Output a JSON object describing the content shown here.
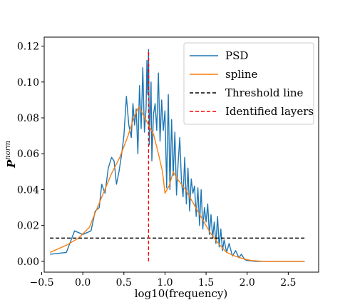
{
  "chart_data": {
    "type": "line",
    "xlabel": "log10(frequency)",
    "ylabel_base": "P",
    "ylabel_sup": "norm",
    "xlim": [
      -0.47,
      2.87
    ],
    "ylim": [
      -0.006,
      0.125
    ],
    "xticks": [
      -0.5,
      0.0,
      0.5,
      1.0,
      1.5,
      2.0,
      2.5
    ],
    "xtick_labels": [
      "−0.5",
      "0.0",
      "0.5",
      "1.0",
      "1.5",
      "2.0",
      "2.5"
    ],
    "yticks": [
      0.0,
      0.02,
      0.04,
      0.06,
      0.08,
      0.1,
      0.12
    ],
    "ytick_labels": [
      "0.00",
      "0.02",
      "0.04",
      "0.06",
      "0.08",
      "0.10",
      "0.12"
    ],
    "grid": false,
    "legend_position": "top-right",
    "threshold": 0.013,
    "identified_layer_x": 0.8,
    "series": [
      {
        "name": "PSD",
        "color": "#1f77b4",
        "style": "solid",
        "points": [
          [
            -0.4,
            0.004
          ],
          [
            -0.2,
            0.005
          ],
          [
            -0.1,
            0.017
          ],
          [
            0.0,
            0.015
          ],
          [
            0.1,
            0.017
          ],
          [
            0.15,
            0.028
          ],
          [
            0.2,
            0.03
          ],
          [
            0.23,
            0.043
          ],
          [
            0.27,
            0.038
          ],
          [
            0.31,
            0.052
          ],
          [
            0.35,
            0.058
          ],
          [
            0.38,
            0.056
          ],
          [
            0.41,
            0.043
          ],
          [
            0.44,
            0.05
          ],
          [
            0.47,
            0.059
          ],
          [
            0.5,
            0.07
          ],
          [
            0.53,
            0.092
          ],
          [
            0.56,
            0.076
          ],
          [
            0.59,
            0.069
          ],
          [
            0.61,
            0.088
          ],
          [
            0.63,
            0.076
          ],
          [
            0.65,
            0.085
          ],
          [
            0.67,
            0.06
          ],
          [
            0.69,
            0.098
          ],
          [
            0.71,
            0.074
          ],
          [
            0.73,
            0.108
          ],
          [
            0.75,
            0.072
          ],
          [
            0.77,
            0.085
          ],
          [
            0.78,
            0.112
          ],
          [
            0.79,
            0.093
          ],
          [
            0.8,
            0.118
          ],
          [
            0.81,
            0.065
          ],
          [
            0.83,
            0.1
          ],
          [
            0.84,
            0.056
          ],
          [
            0.86,
            0.082
          ],
          [
            0.88,
            0.088
          ],
          [
            0.9,
            0.073
          ],
          [
            0.92,
            0.105
          ],
          [
            0.94,
            0.067
          ],
          [
            0.96,
            0.09
          ],
          [
            0.98,
            0.073
          ],
          [
            1.0,
            0.084
          ],
          [
            1.02,
            0.041
          ],
          [
            1.04,
            0.093
          ],
          [
            1.06,
            0.04
          ],
          [
            1.08,
            0.079
          ],
          [
            1.1,
            0.048
          ],
          [
            1.12,
            0.072
          ],
          [
            1.14,
            0.037
          ],
          [
            1.16,
            0.055
          ],
          [
            1.18,
            0.069
          ],
          [
            1.2,
            0.045
          ],
          [
            1.22,
            0.036
          ],
          [
            1.24,
            0.058
          ],
          [
            1.26,
            0.032
          ],
          [
            1.28,
            0.052
          ],
          [
            1.3,
            0.028
          ],
          [
            1.32,
            0.046
          ],
          [
            1.34,
            0.038
          ],
          [
            1.36,
            0.042
          ],
          [
            1.38,
            0.025
          ],
          [
            1.4,
            0.041
          ],
          [
            1.42,
            0.02
          ],
          [
            1.44,
            0.04
          ],
          [
            1.46,
            0.018
          ],
          [
            1.48,
            0.03
          ],
          [
            1.5,
            0.022
          ],
          [
            1.52,
            0.032
          ],
          [
            1.54,
            0.015
          ],
          [
            1.56,
            0.026
          ],
          [
            1.58,
            0.013
          ],
          [
            1.6,
            0.022
          ],
          [
            1.62,
            0.01
          ],
          [
            1.64,
            0.025
          ],
          [
            1.66,
            0.008
          ],
          [
            1.68,
            0.018
          ],
          [
            1.7,
            0.006
          ],
          [
            1.72,
            0.012
          ],
          [
            1.75,
            0.005
          ],
          [
            1.78,
            0.01
          ],
          [
            1.82,
            0.003
          ],
          [
            1.86,
            0.006
          ],
          [
            1.9,
            0.002
          ],
          [
            1.93,
            0.004
          ],
          [
            1.97,
            0.001
          ],
          [
            2.0,
            0.0005
          ],
          [
            2.1,
            0.0
          ],
          [
            2.3,
            0.0
          ],
          [
            2.5,
            0.0
          ],
          [
            2.7,
            0.0
          ]
        ]
      },
      {
        "name": "spline",
        "color": "#ff7f0e",
        "style": "solid",
        "points": [
          [
            -0.4,
            0.005
          ],
          [
            -0.2,
            0.009
          ],
          [
            -0.05,
            0.013
          ],
          [
            0.08,
            0.019
          ],
          [
            0.15,
            0.027
          ],
          [
            0.25,
            0.038
          ],
          [
            0.35,
            0.049
          ],
          [
            0.45,
            0.058
          ],
          [
            0.55,
            0.07
          ],
          [
            0.62,
            0.08
          ],
          [
            0.68,
            0.086
          ],
          [
            0.72,
            0.083
          ],
          [
            0.8,
            0.076
          ],
          [
            0.86,
            0.071
          ],
          [
            0.92,
            0.06
          ],
          [
            0.97,
            0.05
          ],
          [
            1.0,
            0.038
          ],
          [
            1.05,
            0.042
          ],
          [
            1.1,
            0.05
          ],
          [
            1.15,
            0.046
          ],
          [
            1.25,
            0.04
          ],
          [
            1.35,
            0.032
          ],
          [
            1.45,
            0.024
          ],
          [
            1.55,
            0.016
          ],
          [
            1.65,
            0.01
          ],
          [
            1.75,
            0.005
          ],
          [
            1.85,
            0.003
          ],
          [
            1.95,
            0.0015
          ],
          [
            2.05,
            0.0005
          ],
          [
            2.2,
            0.0
          ],
          [
            2.5,
            0.0
          ],
          [
            2.7,
            0.0
          ]
        ]
      },
      {
        "name": "Threshold line",
        "color": "#000000",
        "style": "dashed",
        "points": [
          [
            -0.4,
            0.013
          ],
          [
            2.7,
            0.013
          ]
        ]
      },
      {
        "name": "Identified layers",
        "color": "#ff0000",
        "style": "dashed",
        "points": [
          [
            0.8,
            0.0
          ],
          [
            0.8,
            0.118
          ]
        ]
      }
    ]
  }
}
